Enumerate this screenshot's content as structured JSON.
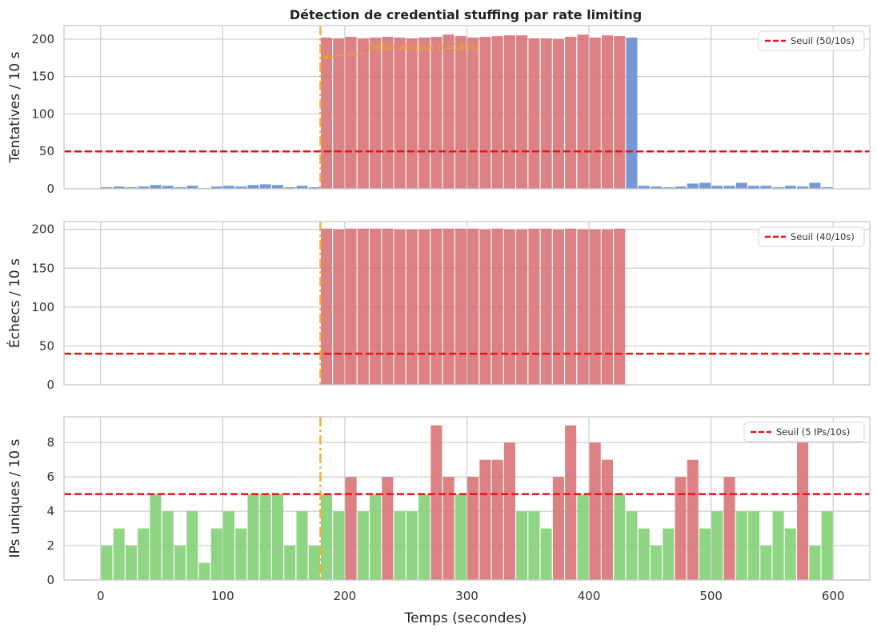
{
  "chart_data": {
    "type": "bar",
    "title": "Détection de credential stuffing par rate limiting",
    "xlabel": "Temps (secondes)",
    "xlim": [
      -30,
      630
    ],
    "xticks": [
      0,
      100,
      200,
      300,
      400,
      500,
      600
    ],
    "bin_width": 10,
    "attack_start": 180,
    "attack_end": 430,
    "attack_marker": {
      "x": 180,
      "label": "Début attaque (t=180s)",
      "color": "#f5a623"
    },
    "x": [
      0,
      10,
      20,
      30,
      40,
      50,
      60,
      70,
      80,
      90,
      100,
      110,
      120,
      130,
      140,
      150,
      160,
      170,
      180,
      190,
      200,
      210,
      220,
      230,
      240,
      250,
      260,
      270,
      280,
      290,
      300,
      310,
      320,
      330,
      340,
      350,
      360,
      370,
      380,
      390,
      400,
      410,
      420,
      430,
      440,
      450,
      460,
      470,
      480,
      490,
      500,
      510,
      520,
      530,
      540,
      550,
      560,
      570,
      580,
      590
    ],
    "colors": {
      "normal": "#6a8fd1",
      "attack": "#d9777a",
      "ok": "#86d17a",
      "threshold": "#e8121a",
      "grid": "#cccccc"
    },
    "panels": [
      {
        "ylabel": "Tentatives / 10 s",
        "ylim": [
          0,
          218
        ],
        "yticks": [
          0,
          50,
          100,
          150,
          200
        ],
        "threshold": 50,
        "legend": "Seuil (50/10s)",
        "show_annotation": true,
        "values": [
          2,
          3,
          2,
          3,
          5,
          4,
          2,
          4,
          1,
          3,
          4,
          3,
          5,
          6,
          5,
          2,
          4,
          2,
          202,
          201,
          203,
          201,
          202,
          203,
          202,
          201,
          202,
          203,
          206,
          204,
          202,
          203,
          204,
          205,
          205,
          201,
          201,
          200,
          203,
          206,
          202,
          205,
          204,
          202,
          4,
          3,
          2,
          3,
          7,
          8,
          4,
          4,
          8,
          4,
          4,
          2,
          4,
          3,
          8,
          2
        ]
      },
      {
        "ylabel": "Échecs / 10 s",
        "ylim": [
          0,
          210
        ],
        "yticks": [
          0,
          50,
          100,
          150,
          200
        ],
        "threshold": 40,
        "legend": "Seuil (40/10s)",
        "show_annotation": false,
        "values": [
          0,
          0,
          0,
          0,
          0,
          0,
          0,
          0,
          0,
          0,
          0,
          0,
          0,
          0,
          0,
          0,
          0,
          0,
          201,
          200,
          201,
          201,
          201,
          201,
          200,
          200,
          200,
          201,
          201,
          201,
          201,
          200,
          201,
          200,
          200,
          201,
          201,
          200,
          201,
          200,
          200,
          200,
          201,
          0,
          0,
          0,
          0,
          0,
          0,
          0,
          0,
          0,
          0,
          0,
          0,
          0,
          0,
          0,
          0,
          0
        ]
      },
      {
        "ylabel": "IPs uniques / 10 s",
        "ylim": [
          0,
          9.5
        ],
        "yticks": [
          0,
          2,
          4,
          6,
          8
        ],
        "threshold": 5,
        "legend": "Seuil (5 IPs/10s)",
        "show_annotation": false,
        "values": [
          2,
          3,
          2,
          3,
          5,
          4,
          2,
          4,
          1,
          3,
          4,
          3,
          5,
          5,
          5,
          2,
          4,
          2,
          5,
          4,
          6,
          4,
          5,
          6,
          4,
          4,
          5,
          9,
          6,
          5,
          6,
          7,
          7,
          8,
          4,
          4,
          3,
          6,
          9,
          5,
          8,
          7,
          5,
          4,
          3,
          2,
          3,
          6,
          7,
          3,
          4,
          6,
          4,
          4,
          2,
          4,
          3,
          8,
          2,
          4
        ],
        "bar_status": [
          "ok",
          "ok",
          "ok",
          "ok",
          "ok",
          "ok",
          "ok",
          "ok",
          "ok",
          "ok",
          "ok",
          "ok",
          "ok",
          "ok",
          "ok",
          "ok",
          "ok",
          "ok",
          "ok",
          "ok",
          "attack",
          "ok",
          "ok",
          "attack",
          "ok",
          "ok",
          "ok",
          "attack",
          "attack",
          "ok",
          "attack",
          "attack",
          "attack",
          "attack",
          "ok",
          "ok",
          "ok",
          "attack",
          "attack",
          "ok",
          "attack",
          "attack",
          "ok",
          "ok",
          "ok",
          "ok",
          "ok",
          "attack",
          "attack",
          "ok",
          "ok",
          "attack",
          "ok",
          "ok",
          "ok",
          "ok",
          "ok",
          "attack",
          "ok",
          "ok"
        ]
      }
    ]
  }
}
